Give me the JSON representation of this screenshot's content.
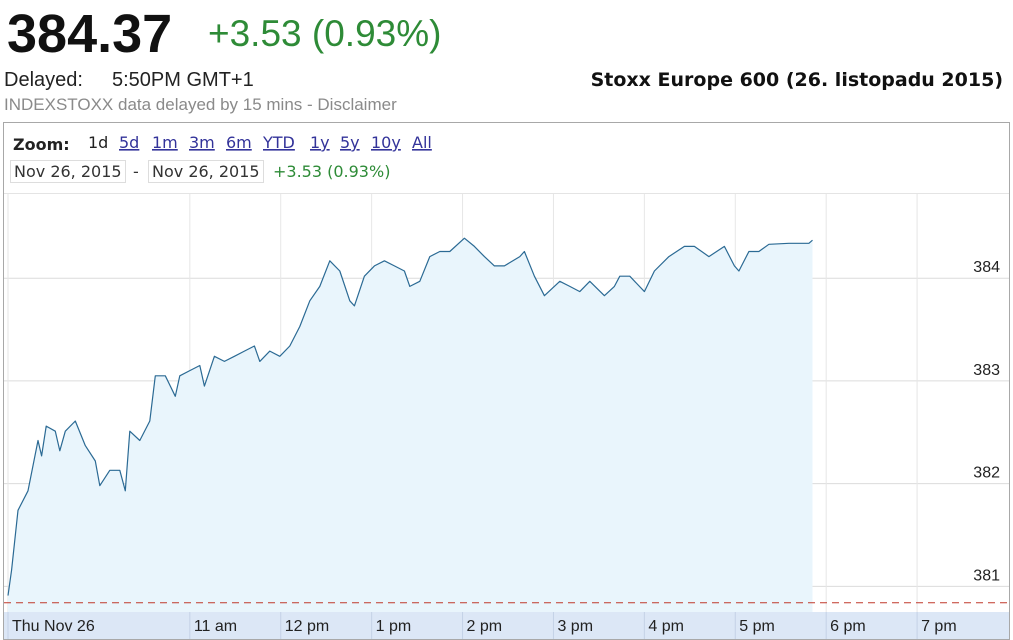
{
  "header": {
    "price": "384.37",
    "change": "+3.53 (0.93%)",
    "delayed_label": "Delayed:",
    "delayed_time": "5:50PM GMT+1",
    "disclaimer": "INDEXSTOXX data delayed by 15 mins - Disclaimer",
    "chart_title": "Stoxx Europe 600 (26. listopadu 2015)"
  },
  "toolbar": {
    "zoom_label": "Zoom:",
    "zoom_options": [
      "1d",
      "5d",
      "1m",
      "3m",
      "6m",
      "YTD",
      "1y",
      "5y",
      "10y",
      "All"
    ],
    "selected_index": 0,
    "date_from": "Nov 26, 2015",
    "date_separator": "-",
    "date_to": "Nov 26, 2015",
    "range_change": "+3.53 (0.93%)"
  },
  "chart_data": {
    "type": "area",
    "color": "#2b6a94",
    "area_color": "#e9f5fc",
    "grid": true,
    "prev_close": 380.84,
    "prev_close_color": "#c0392b",
    "xlim": [
      9,
      20
    ],
    "xticks": [
      {
        "value": 9,
        "label": "Thu Nov 26"
      },
      {
        "value": 11,
        "label": "11 am"
      },
      {
        "value": 12,
        "label": "12 pm"
      },
      {
        "value": 13,
        "label": "1 pm"
      },
      {
        "value": 14,
        "label": "2 pm"
      },
      {
        "value": 15,
        "label": "3 pm"
      },
      {
        "value": 16,
        "label": "4 pm"
      },
      {
        "value": 17,
        "label": "5 pm"
      },
      {
        "value": 18,
        "label": "6 pm"
      },
      {
        "value": 19,
        "label": "7 pm"
      }
    ],
    "ylim": [
      380.75,
      384.82
    ],
    "yticks": [
      381,
      382,
      383,
      384
    ],
    "x": [
      9.0,
      9.04,
      9.11,
      9.22,
      9.33,
      9.37,
      9.42,
      9.52,
      9.57,
      9.63,
      9.74,
      9.85,
      9.96,
      10.01,
      10.12,
      10.23,
      10.29,
      10.34,
      10.45,
      10.56,
      10.62,
      10.73,
      10.84,
      10.89,
      11.0,
      11.11,
      11.16,
      11.27,
      11.38,
      11.49,
      11.6,
      11.71,
      11.77,
      11.88,
      11.99,
      12.1,
      12.21,
      12.32,
      12.43,
      12.54,
      12.65,
      12.76,
      12.81,
      12.92,
      13.03,
      13.14,
      13.25,
      13.36,
      13.42,
      13.53,
      13.64,
      13.75,
      13.86,
      14.02,
      14.13,
      14.24,
      14.35,
      14.46,
      14.63,
      14.68,
      14.79,
      14.9,
      15.07,
      15.18,
      15.29,
      15.4,
      15.56,
      15.67,
      15.73,
      15.84,
      16.0,
      16.11,
      16.27,
      16.44,
      16.55,
      16.71,
      16.88,
      16.99,
      17.04,
      17.15,
      17.26,
      17.37,
      17.59,
      17.81,
      17.85
    ],
    "values": [
      380.91,
      381.16,
      381.74,
      381.93,
      382.42,
      382.27,
      382.56,
      382.51,
      382.32,
      382.51,
      382.61,
      382.37,
      382.22,
      381.98,
      382.13,
      382.13,
      381.93,
      382.51,
      382.42,
      382.61,
      383.05,
      383.05,
      382.85,
      383.05,
      383.1,
      383.15,
      382.95,
      383.24,
      383.19,
      383.24,
      383.29,
      383.34,
      383.19,
      383.29,
      383.24,
      383.34,
      383.53,
      383.78,
      383.92,
      384.17,
      384.07,
      383.78,
      383.73,
      384.02,
      384.12,
      384.17,
      384.12,
      384.07,
      383.92,
      383.97,
      384.21,
      384.26,
      384.26,
      384.39,
      384.31,
      384.21,
      384.12,
      384.12,
      384.21,
      384.26,
      384.02,
      383.83,
      383.97,
      383.92,
      383.87,
      383.97,
      383.83,
      383.92,
      384.02,
      384.02,
      383.87,
      384.07,
      384.21,
      384.31,
      384.31,
      384.21,
      384.31,
      384.12,
      384.07,
      384.26,
      384.26,
      384.33,
      384.34,
      384.34,
      384.37
    ]
  }
}
